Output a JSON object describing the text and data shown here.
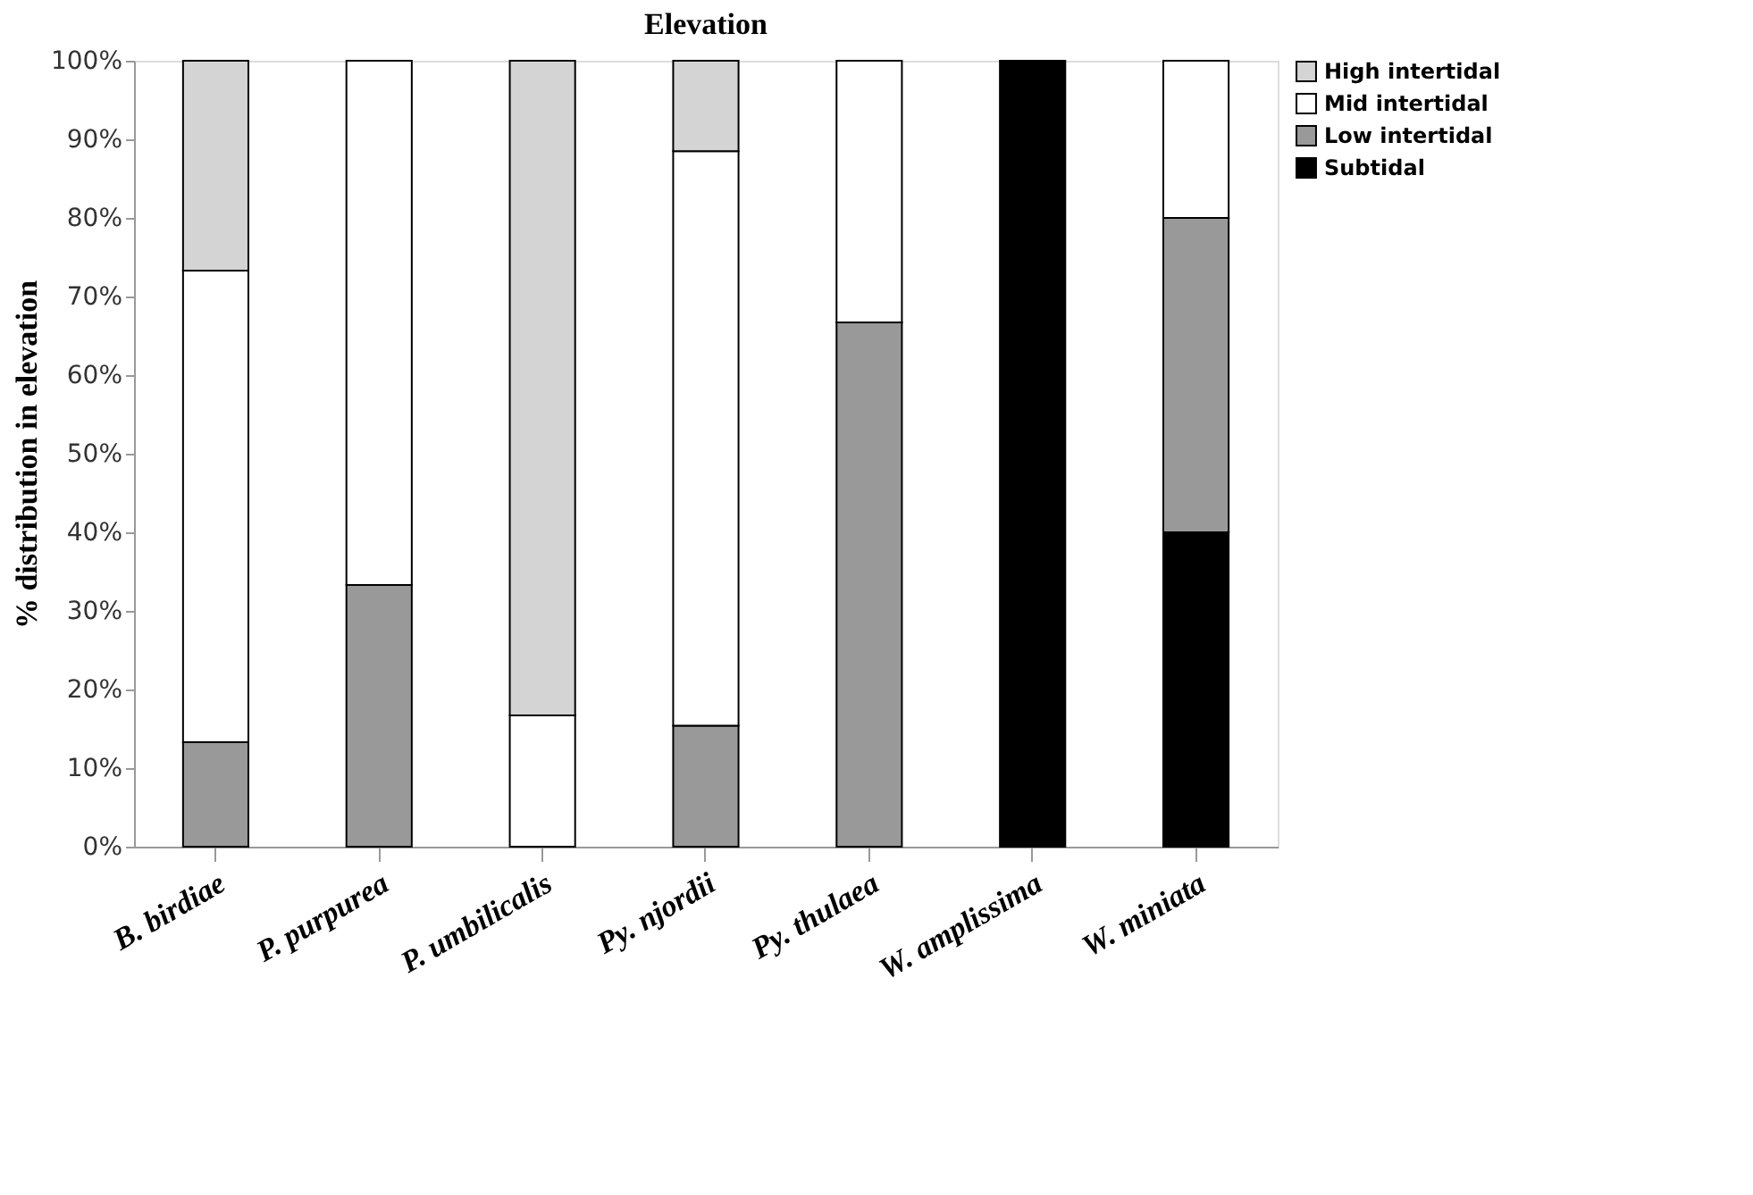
{
  "chart_data": {
    "type": "bar",
    "stacked": true,
    "title": "Elevation",
    "ylabel": "% distribution in elevation",
    "categories": [
      "B. birdiae",
      "P. purpurea",
      "P. umbilicalis",
      "Py. njordii",
      "Py. thulaea",
      "W. amplissima",
      "W. miniata"
    ],
    "series": [
      {
        "name": "Subtidal",
        "color": "#000000",
        "values": [
          null,
          null,
          null,
          null,
          null,
          100,
          40
        ]
      },
      {
        "name": "Low intertidal",
        "color": "#999999",
        "values": [
          13.3,
          33.3,
          null,
          15.4,
          66.7,
          null,
          40
        ]
      },
      {
        "name": "Mid intertidal",
        "color": "#ffffff",
        "values": [
          60,
          66.7,
          16.7,
          73.1,
          33.3,
          null,
          20
        ]
      },
      {
        "name": "High intertidal",
        "color": "#d4d4d4",
        "values": [
          26.7,
          null,
          83.3,
          11.5,
          null,
          null,
          null
        ]
      }
    ],
    "ylim": [
      0,
      100
    ],
    "yticks": [
      {
        "value": 0,
        "label": "0%"
      },
      {
        "value": 10,
        "label": "10%"
      },
      {
        "value": 20,
        "label": "20%"
      },
      {
        "value": 30,
        "label": "30%"
      },
      {
        "value": 40,
        "label": "40%"
      },
      {
        "value": 50,
        "label": "50%"
      },
      {
        "value": 60,
        "label": "60%"
      },
      {
        "value": 70,
        "label": "70%"
      },
      {
        "value": 80,
        "label": "80%"
      },
      {
        "value": 90,
        "label": "90%"
      },
      {
        "value": 100,
        "label": "100%"
      }
    ],
    "grid": false,
    "legend": "right"
  }
}
